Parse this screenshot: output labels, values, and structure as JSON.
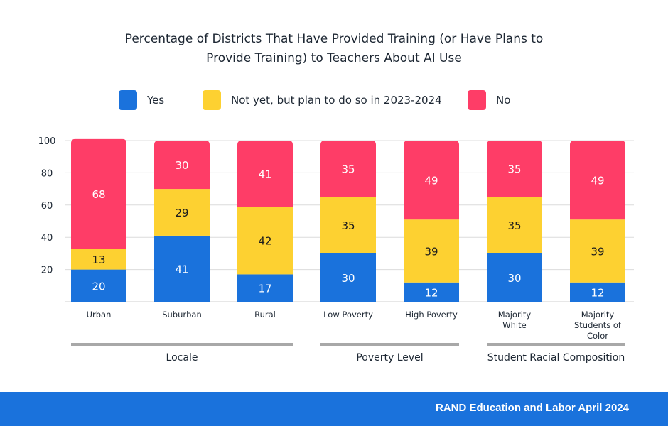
{
  "chart_data": {
    "type": "bar",
    "stacked": true,
    "title": "Percentage of Districts That Have Provided Training (or Have Plans to Provide Training) to Teachers About AI Use",
    "title_lines": [
      "Percentage of Districts That Have Provided Training (or Have Plans to",
      "Provide Training) to Teachers About AI Use"
    ],
    "xlabel": "",
    "ylabel": "",
    "ylim": [
      0,
      100
    ],
    "yticks": [
      20,
      40,
      60,
      80,
      100
    ],
    "grid": true,
    "legend_position": "top",
    "categories": [
      "Urban",
      "Suburban",
      "Rural",
      "Low Poverty",
      "High Poverty",
      "Majority White",
      "Majority Students of Color"
    ],
    "category_label_lines": [
      [
        "Urban"
      ],
      [
        "Suburban"
      ],
      [
        "Rural"
      ],
      [
        "Low Poverty"
      ],
      [
        "High Poverty"
      ],
      [
        "Majority",
        "White"
      ],
      [
        "Majority",
        "Students of",
        "Color"
      ]
    ],
    "series": [
      {
        "name": "Yes",
        "color": "#1a72dc",
        "label_color": "#ffffff",
        "values": [
          20,
          41,
          17,
          30,
          12,
          30,
          12
        ]
      },
      {
        "name": "Not yet, but plan to do so in 2023-2024",
        "color": "#fdd131",
        "label_color": "#1d1d1d",
        "values": [
          13,
          29,
          42,
          35,
          39,
          35,
          39
        ]
      },
      {
        "name": "No",
        "color": "#fe3d67",
        "label_color": "#ffffff",
        "values": [
          68,
          30,
          41,
          35,
          49,
          35,
          49
        ]
      }
    ],
    "groups": [
      {
        "name": "Locale",
        "categories": [
          "Urban",
          "Suburban",
          "Rural"
        ]
      },
      {
        "name": "Poverty Level",
        "categories": [
          "Low Poverty",
          "High Poverty"
        ]
      },
      {
        "name": "Student Racial Composition",
        "categories": [
          "Majority White",
          "Majority Students of Color"
        ]
      }
    ]
  },
  "footer": {
    "text": "RAND Education and Labor April 2024",
    "color": "#1a72dc"
  }
}
